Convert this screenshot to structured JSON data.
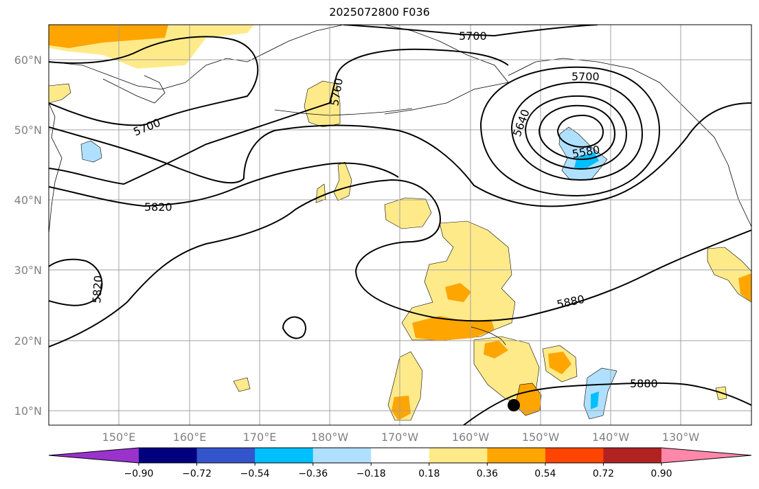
{
  "title": "2025072800 F036",
  "lat_labels": [
    "60°N",
    "50°N",
    "40°N",
    "30°N",
    "20°N",
    "10°N"
  ],
  "lon_labels": [
    "150°E",
    "160°E",
    "170°E",
    "180°W",
    "170°W",
    "160°W",
    "150°W",
    "140°W",
    "130°W"
  ],
  "contour_labels": {
    "c5700_top": "5700",
    "c5700_low": "5700",
    "c5700_left": "5700",
    "c5640": "5640",
    "c5580": "5580",
    "c5760": "5760",
    "c5820_mid": "5820",
    "c5820_left": "5820",
    "c5880_mid": "5880",
    "c5880_low": "5880"
  },
  "colorbar": {
    "colors": [
      "#9933cc",
      "#00007f",
      "#3355cc",
      "#00bfff",
      "#b0e0ff",
      "#ffffff",
      "#ffea8a",
      "#ffa500",
      "#ff4500",
      "#b22222",
      "#ff88aa"
    ],
    "tick_labels": [
      "−0.90",
      "−0.72",
      "−0.54",
      "−0.36",
      "−0.18",
      "0.18",
      "0.36",
      "0.54",
      "0.72",
      "0.90"
    ]
  },
  "marker": "storm-center"
}
